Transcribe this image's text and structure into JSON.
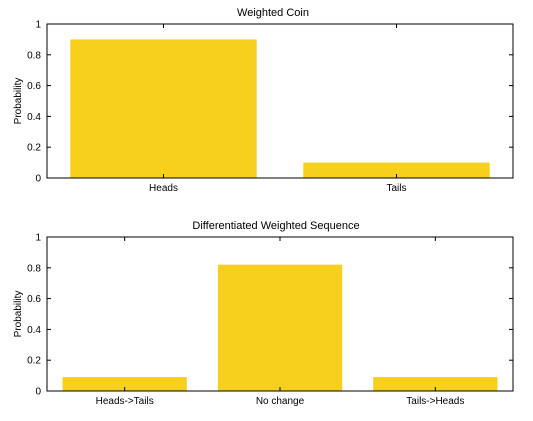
{
  "chart_data": [
    {
      "type": "bar",
      "title": "Weighted Coin",
      "xlabel": "",
      "ylabel": "Probability",
      "categories": [
        "Heads",
        "Tails"
      ],
      "values": [
        0.9,
        0.1
      ],
      "ylim": [
        0,
        1
      ],
      "yticks": [
        0,
        0.2,
        0.4,
        0.6,
        0.8,
        1
      ],
      "ytick_labels": [
        "0",
        "0.2",
        "0.4",
        "0.6",
        "0.8",
        "1"
      ],
      "bar_color": "#f7d01e",
      "grid": false,
      "legend": "none"
    },
    {
      "type": "bar",
      "title": "Differentiated Weighted Sequence",
      "xlabel": "",
      "ylabel": "Probability",
      "categories": [
        "Heads->Tails",
        "No change",
        "Tails->Heads"
      ],
      "values": [
        0.09,
        0.82,
        0.09
      ],
      "ylim": [
        0,
        1
      ],
      "yticks": [
        0,
        0.2,
        0.4,
        0.6,
        0.8,
        1
      ],
      "ytick_labels": [
        "0",
        "0.2",
        "0.4",
        "0.6",
        "0.8",
        "1"
      ],
      "bar_color": "#f7d01e",
      "grid": false,
      "legend": "none"
    }
  ]
}
